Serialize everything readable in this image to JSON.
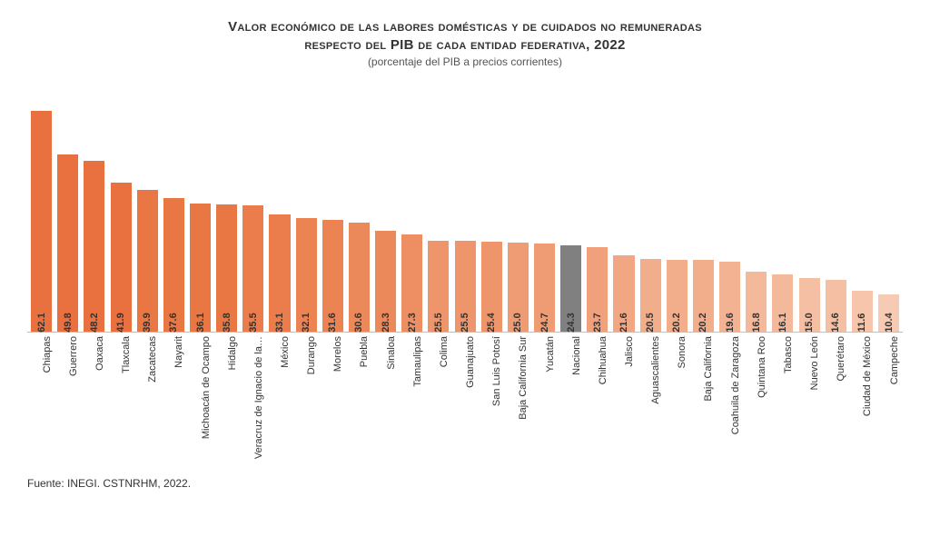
{
  "title_line1": "Valor económico de las labores domésticas y de cuidados no remuneradas",
  "title_line2": "respecto del PIB de cada entidad federativa, 2022",
  "subtitle": "(porcentaje del PIB a precios corrientes)",
  "source_prefix": "Fuente: ",
  "source_text": "INEGI. CSTNRHM, 2022.",
  "chart": {
    "type": "bar",
    "max_value": 65,
    "bar_default_color": "#e97b4e",
    "bar_highlight_color": "#808080",
    "value_color": "#333333",
    "axis_color": "#bfbfbf",
    "background_color": "#ffffff",
    "value_fontsize": 11,
    "label_fontsize": 11,
    "bars": [
      {
        "label": "Chiapas",
        "value": 62.1,
        "color": "#e9713f"
      },
      {
        "label": "Guerrero",
        "value": 49.8,
        "color": "#e9713f"
      },
      {
        "label": "Oaxaca",
        "value": 48.2,
        "color": "#e9713f"
      },
      {
        "label": "Tlaxcala",
        "value": 41.9,
        "color": "#e9713f"
      },
      {
        "label": "Zacatecas",
        "value": 39.9,
        "color": "#e97744"
      },
      {
        "label": "Nayarit",
        "value": 37.6,
        "color": "#e97744"
      },
      {
        "label": "Michoacán de Ocampo",
        "value": 36.1,
        "color": "#e97744"
      },
      {
        "label": "Hidalgo",
        "value": 35.8,
        "color": "#e97744"
      },
      {
        "label": "Veracruz de Ignacio de la…",
        "value": 35.5,
        "color": "#ea7d4b"
      },
      {
        "label": "México",
        "value": 33.1,
        "color": "#ea7d4b"
      },
      {
        "label": "Durango",
        "value": 32.1,
        "color": "#eb8353"
      },
      {
        "label": "Morelos",
        "value": 31.6,
        "color": "#eb8353"
      },
      {
        "label": "Puebla",
        "value": 30.6,
        "color": "#ec895b"
      },
      {
        "label": "Sinaloa",
        "value": 28.3,
        "color": "#ec895b"
      },
      {
        "label": "Tamaulipas",
        "value": 27.3,
        "color": "#ed8f63"
      },
      {
        "label": "Colima",
        "value": 25.5,
        "color": "#ee956b"
      },
      {
        "label": "Guanajuato",
        "value": 25.5,
        "color": "#ee956b"
      },
      {
        "label": "San Luis Potosí",
        "value": 25.4,
        "color": "#ee956b"
      },
      {
        "label": "Baja California Sur",
        "value": 25.0,
        "color": "#ef9b73"
      },
      {
        "label": "Yucatán",
        "value": 24.7,
        "color": "#ef9b73"
      },
      {
        "label": "Nacional",
        "value": 24.3,
        "color": "#808080"
      },
      {
        "label": "Chihuahua",
        "value": 23.7,
        "color": "#f0a17b"
      },
      {
        "label": "Jalisco",
        "value": 21.6,
        "color": "#f1a783"
      },
      {
        "label": "Aguascalientes",
        "value": 20.5,
        "color": "#f2ad8b"
      },
      {
        "label": "Sonora",
        "value": 20.2,
        "color": "#f2ad8b"
      },
      {
        "label": "Baja California",
        "value": 20.2,
        "color": "#f2ad8b"
      },
      {
        "label": "Coahuila de Zaragoza",
        "value": 19.6,
        "color": "#f3b393"
      },
      {
        "label": "Quintana Roo",
        "value": 16.8,
        "color": "#f4b99b"
      },
      {
        "label": "Tabasco",
        "value": 16.1,
        "color": "#f4b99b"
      },
      {
        "label": "Nuevo León",
        "value": 15.0,
        "color": "#f5bfa3"
      },
      {
        "label": "Querétaro",
        "value": 14.6,
        "color": "#f5bfa3"
      },
      {
        "label": "Ciudad de México",
        "value": 11.6,
        "color": "#f6c5ab"
      },
      {
        "label": "Campeche",
        "value": 10.4,
        "color": "#f7cbb3"
      }
    ]
  }
}
